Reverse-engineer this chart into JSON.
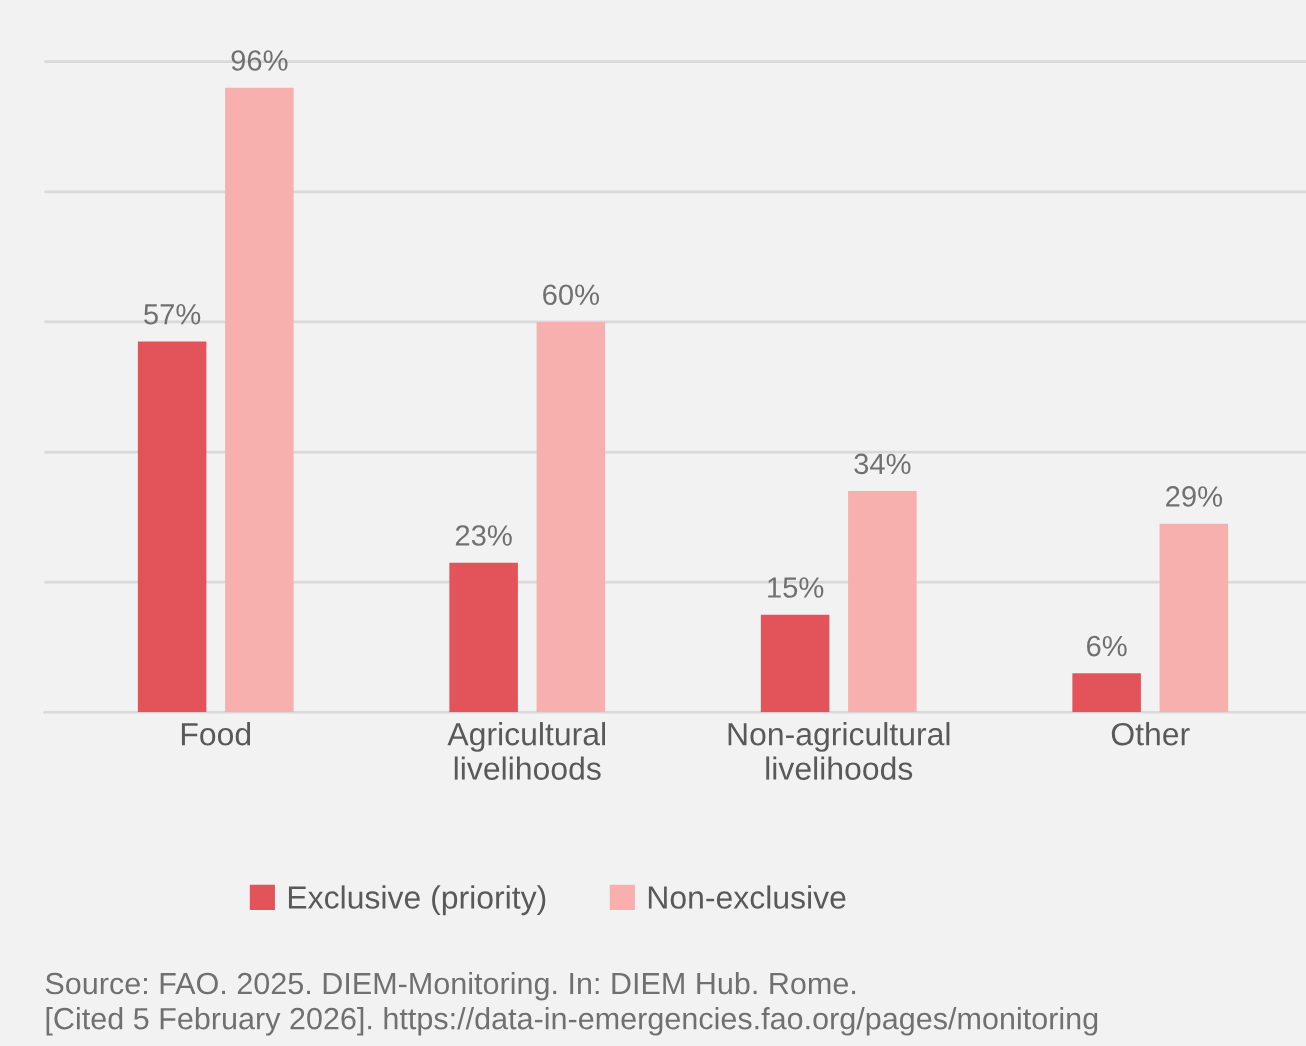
{
  "chart_data": {
    "type": "bar",
    "categories": [
      "Food",
      "Agricultural\nlivelihoods",
      "Non-agricultural\nlivelihoods",
      "Other"
    ],
    "series": [
      {
        "name": "Exclusive (priority)",
        "color": "#e2535a",
        "values": [
          57,
          23,
          15,
          6
        ],
        "value_labels": [
          "57%",
          "23%",
          "15%",
          "6%"
        ]
      },
      {
        "name": "Non-exclusive",
        "color": "#f7b0ae",
        "values": [
          96,
          60,
          34,
          29
        ],
        "value_labels": [
          "96%",
          "60%",
          "34%",
          "29%"
        ]
      }
    ],
    "grid": "y",
    "legend": "bottom",
    "annotations": [
      "Source: FAO. 2025. DIEM-Monitoring. In: DIEM Hub. Rome.\n[Cited 5 February 2026]. https://data-in-emergencies.fao.org/pages/monitoring"
    ]
  }
}
